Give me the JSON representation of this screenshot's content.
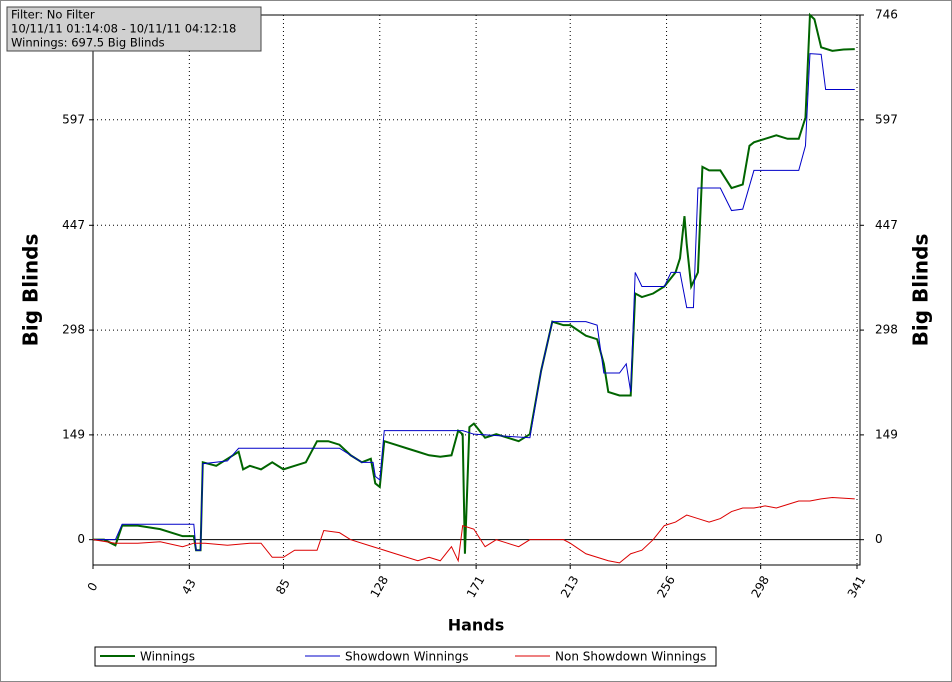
{
  "chart_data": {
    "type": "line",
    "info": [
      "Filter: No Filter",
      "10/11/11 01:14:08 - 10/11/11 04:12:18",
      "Winnings: 697.5 Big Blinds"
    ],
    "xlabel": "Hands",
    "ylabel": "Big Blinds",
    "y2label": "Big Blinds",
    "xlim": [
      0,
      341
    ],
    "xticks": [
      0,
      43,
      85,
      128,
      171,
      213,
      256,
      298,
      341
    ],
    "ylim": [
      -36,
      746
    ],
    "yticks": [
      0,
      149,
      298,
      447,
      597,
      746
    ],
    "y2lim": [
      -36,
      746
    ],
    "y2ticks": [
      0,
      149,
      298,
      447,
      597,
      746
    ],
    "grid": true,
    "legend": "bottom",
    "series": [
      {
        "name": "Winnings",
        "color": "#006400",
        "x": [
          0,
          5,
          10,
          13,
          20,
          30,
          40,
          45,
          46,
          48,
          49,
          55,
          60,
          65,
          67,
          70,
          75,
          80,
          85,
          90,
          95,
          100,
          105,
          110,
          115,
          120,
          124,
          126,
          128,
          130,
          135,
          140,
          145,
          150,
          155,
          160,
          163,
          165,
          166,
          168,
          170,
          175,
          180,
          185,
          190,
          195,
          200,
          205,
          210,
          213,
          220,
          225,
          228,
          230,
          235,
          240,
          242,
          245,
          250,
          255,
          260,
          262,
          264,
          265,
          267,
          270,
          272,
          275,
          280,
          285,
          290,
          293,
          295,
          300,
          305,
          310,
          315,
          318,
          320,
          322,
          325,
          330,
          335,
          340
        ],
        "values": [
          0,
          0,
          -8,
          20,
          20,
          15,
          5,
          5,
          -15,
          -15,
          110,
          105,
          115,
          125,
          100,
          105,
          100,
          110,
          100,
          105,
          110,
          140,
          140,
          135,
          120,
          110,
          115,
          80,
          75,
          140,
          135,
          130,
          125,
          120,
          118,
          120,
          155,
          150,
          -20,
          160,
          165,
          145,
          150,
          145,
          140,
          150,
          240,
          310,
          305,
          305,
          290,
          285,
          250,
          210,
          205,
          205,
          350,
          345,
          350,
          360,
          380,
          400,
          460,
          420,
          360,
          380,
          530,
          525,
          525,
          500,
          505,
          560,
          565,
          570,
          575,
          570,
          570,
          600,
          746,
          740,
          700,
          695,
          697,
          697.5
        ]
      },
      {
        "name": "Showdown Winnings",
        "color": "#0000c8",
        "x": [
          0,
          10,
          13,
          45,
          46,
          48,
          49,
          60,
          65,
          110,
          120,
          125,
          126,
          128,
          130,
          165,
          170,
          195,
          200,
          205,
          220,
          225,
          228,
          235,
          238,
          240,
          242,
          245,
          255,
          258,
          262,
          265,
          268,
          270,
          280,
          285,
          290,
          295,
          315,
          318,
          320,
          325,
          327,
          340
        ],
        "values": [
          0,
          0,
          22,
          22,
          -15,
          -15,
          108,
          112,
          130,
          130,
          110,
          110,
          90,
          85,
          155,
          155,
          150,
          145,
          240,
          310,
          310,
          305,
          237,
          237,
          250,
          210,
          380,
          360,
          360,
          380,
          380,
          330,
          330,
          500,
          500,
          468,
          470,
          525,
          525,
          560,
          691,
          690,
          640,
          640
        ]
      },
      {
        "name": "Non Showdown Winnings",
        "color": "#dc0000",
        "x": [
          0,
          10,
          20,
          30,
          40,
          45,
          50,
          60,
          70,
          75,
          80,
          85,
          90,
          100,
          103,
          110,
          115,
          125,
          135,
          145,
          150,
          155,
          160,
          163,
          165,
          170,
          175,
          180,
          185,
          190,
          195,
          200,
          210,
          213,
          220,
          230,
          235,
          240,
          245,
          250,
          255,
          260,
          265,
          270,
          275,
          280,
          285,
          290,
          295,
          300,
          305,
          310,
          315,
          320,
          325,
          330,
          340
        ],
        "values": [
          0,
          -5,
          -5,
          -3,
          -10,
          -5,
          -5,
          -8,
          -5,
          -5,
          -25,
          -25,
          -15,
          -15,
          13,
          10,
          0,
          -10,
          -20,
          -30,
          -25,
          -30,
          -10,
          -30,
          20,
          15,
          -10,
          0,
          -5,
          -10,
          0,
          0,
          0,
          -5,
          -20,
          -30,
          -33,
          -20,
          -15,
          0,
          20,
          25,
          35,
          30,
          25,
          30,
          40,
          45,
          45,
          48,
          45,
          50,
          55,
          55,
          58,
          60,
          58
        ]
      }
    ]
  }
}
